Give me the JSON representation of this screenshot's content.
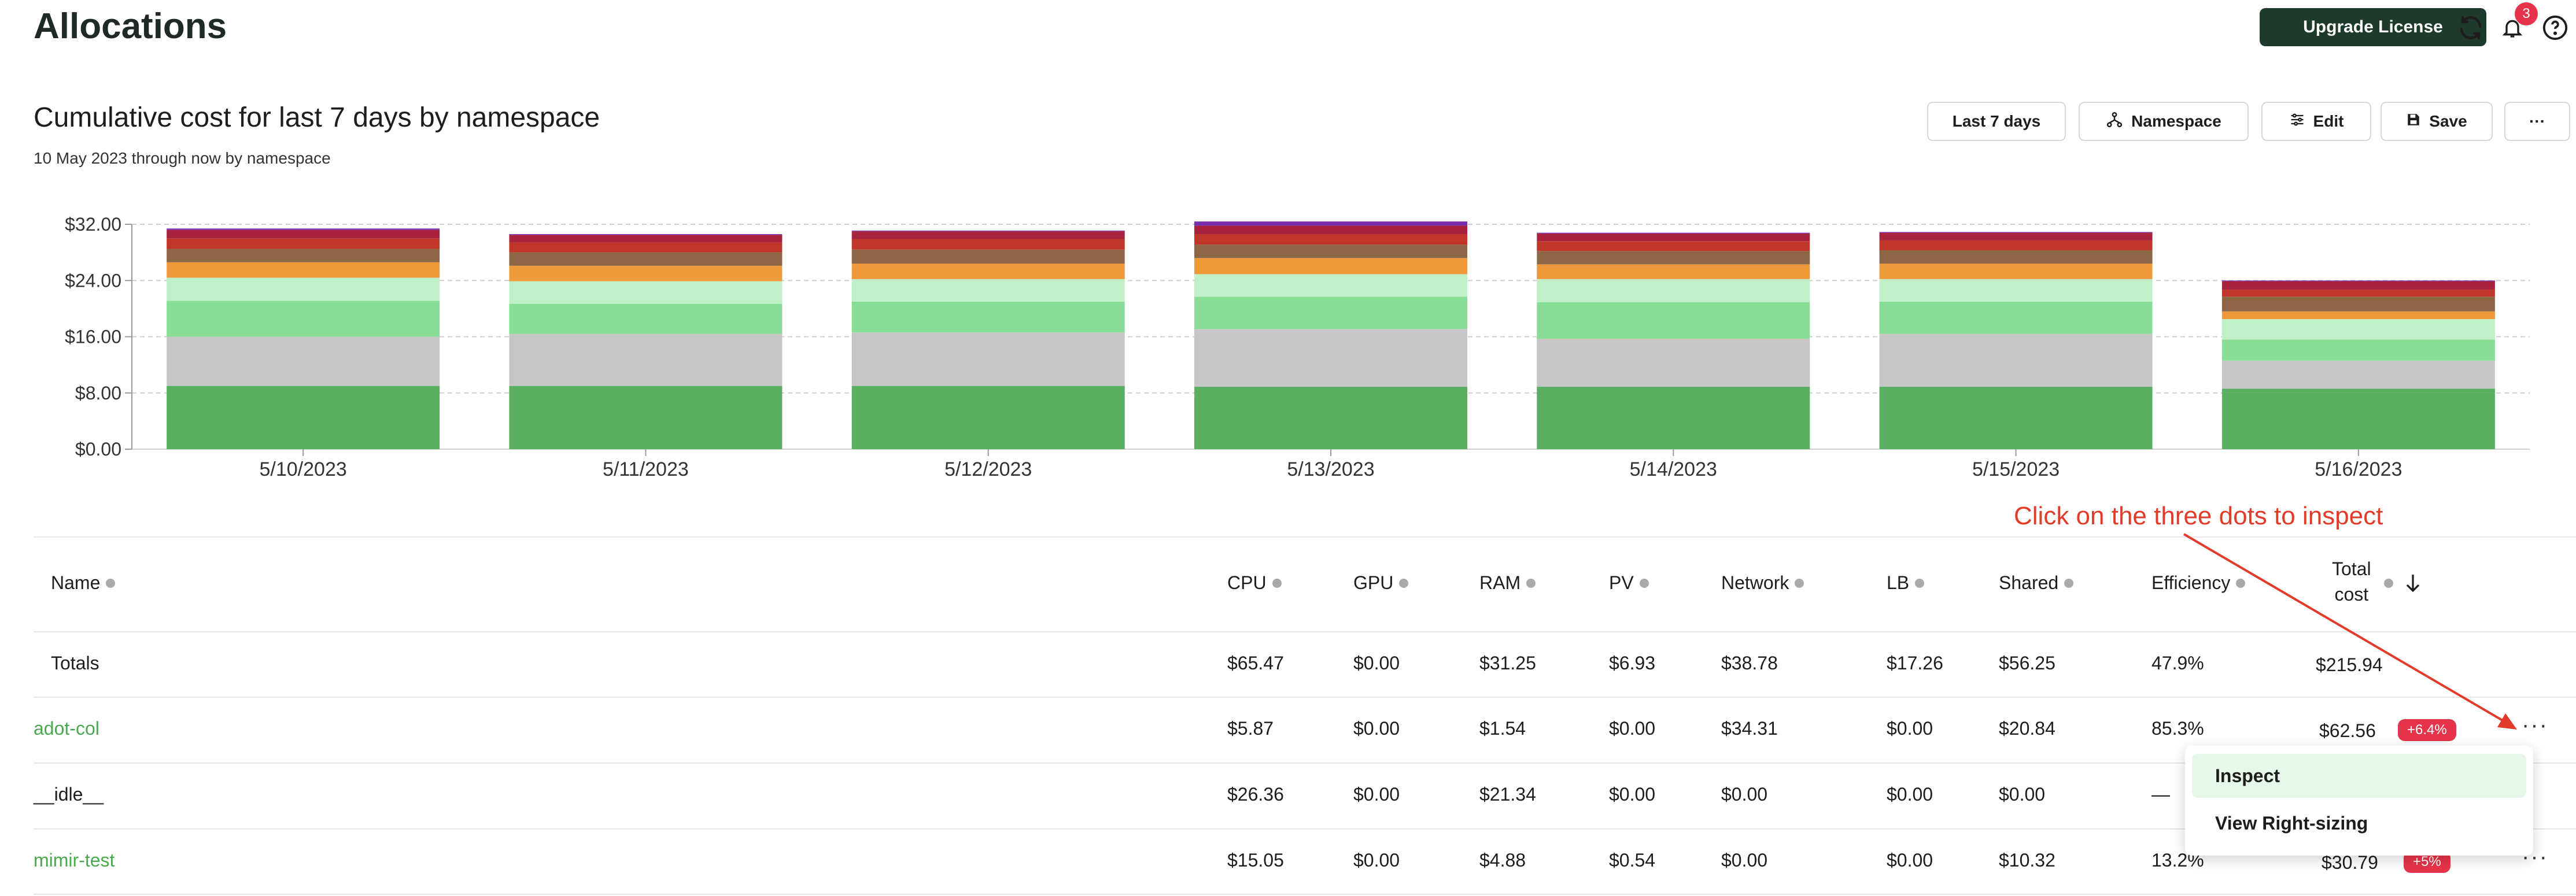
{
  "page": {
    "title": "Allocations"
  },
  "header": {
    "upgrade_label": "Upgrade License",
    "notification_count": "3"
  },
  "report": {
    "title": "Cumulative cost for last 7 days by namespace",
    "subtitle": "10 May 2023 through now by namespace",
    "buttons": {
      "range": "Last 7 days",
      "aggregate": "Namespace",
      "edit": "Edit",
      "save": "Save",
      "more": "···"
    }
  },
  "chart_data": {
    "type": "bar",
    "stacked": true,
    "categories": [
      "5/10/2023",
      "5/11/2023",
      "5/12/2023",
      "5/13/2023",
      "5/14/2023",
      "5/15/2023",
      "5/16/2023"
    ],
    "yticks": [
      "$0.00",
      "$8.00",
      "$16.00",
      "$24.00",
      "$32.00"
    ],
    "ylim": [
      0,
      32
    ],
    "grid": true,
    "colors": [
      "#5ab060",
      "#c6c6c6",
      "#88de96",
      "#bff0c7",
      "#ef9a3a",
      "#8d6646",
      "#c03628",
      "#a8243e",
      "#7b2fb0"
    ],
    "series": [
      {
        "values": [
          9.0,
          9.0,
          9.0,
          8.9,
          8.9,
          8.9,
          8.6
        ]
      },
      {
        "values": [
          7.0,
          7.4,
          7.6,
          8.2,
          6.8,
          7.5,
          4.0
        ]
      },
      {
        "values": [
          5.1,
          4.3,
          4.4,
          4.6,
          5.2,
          4.6,
          3.0
        ]
      },
      {
        "values": [
          3.3,
          3.2,
          3.2,
          3.2,
          3.3,
          3.2,
          2.9
        ]
      },
      {
        "values": [
          2.2,
          2.2,
          2.2,
          2.3,
          2.1,
          2.2,
          1.1
        ]
      },
      {
        "values": [
          1.9,
          1.9,
          2.0,
          1.9,
          1.9,
          1.9,
          2.1
        ]
      },
      {
        "values": [
          1.5,
          1.4,
          1.5,
          1.5,
          1.4,
          1.4,
          1.0
        ]
      },
      {
        "values": [
          1.2,
          1.1,
          1.1,
          1.2,
          1.1,
          1.1,
          1.2
        ]
      },
      {
        "values": [
          0.2,
          0.1,
          0.1,
          0.6,
          0.1,
          0.1,
          0.1
        ]
      }
    ]
  },
  "table": {
    "columns": [
      "Name",
      "CPU",
      "GPU",
      "RAM",
      "PV",
      "Network",
      "LB",
      "Shared",
      "Efficiency",
      "Total cost"
    ],
    "total_cost_line1": "Total",
    "total_cost_line2": "cost",
    "totals": {
      "name": "Totals",
      "cpu": "$65.47",
      "gpu": "$0.00",
      "ram": "$31.25",
      "pv": "$6.93",
      "network": "$38.78",
      "lb": "$17.26",
      "shared": "$56.25",
      "efficiency": "47.9%",
      "total": "$215.94"
    },
    "rows": [
      {
        "name": "adot-col",
        "cpu": "$5.87",
        "gpu": "$0.00",
        "ram": "$1.54",
        "pv": "$0.00",
        "network": "$34.31",
        "lb": "$0.00",
        "shared": "$20.84",
        "efficiency": "85.3%",
        "total": "$62.56",
        "change": "+6.4%"
      },
      {
        "name": "__idle__",
        "cpu": "$26.36",
        "gpu": "$0.00",
        "ram": "$21.34",
        "pv": "$0.00",
        "network": "$0.00",
        "lb": "$0.00",
        "shared": "$0.00",
        "efficiency": "—",
        "total": "",
        "change": ""
      },
      {
        "name": "mimir-test",
        "cpu": "$15.05",
        "gpu": "$0.00",
        "ram": "$4.88",
        "pv": "$0.54",
        "network": "$0.00",
        "lb": "$0.00",
        "shared": "$10.32",
        "efficiency": "13.2%",
        "total": "$30.79",
        "change": "+5%"
      }
    ],
    "row_actions": "···"
  },
  "context_menu": {
    "items": [
      "Inspect",
      "View Right-sizing"
    ]
  },
  "annotation": {
    "text": "Click on the three dots to inspect"
  }
}
